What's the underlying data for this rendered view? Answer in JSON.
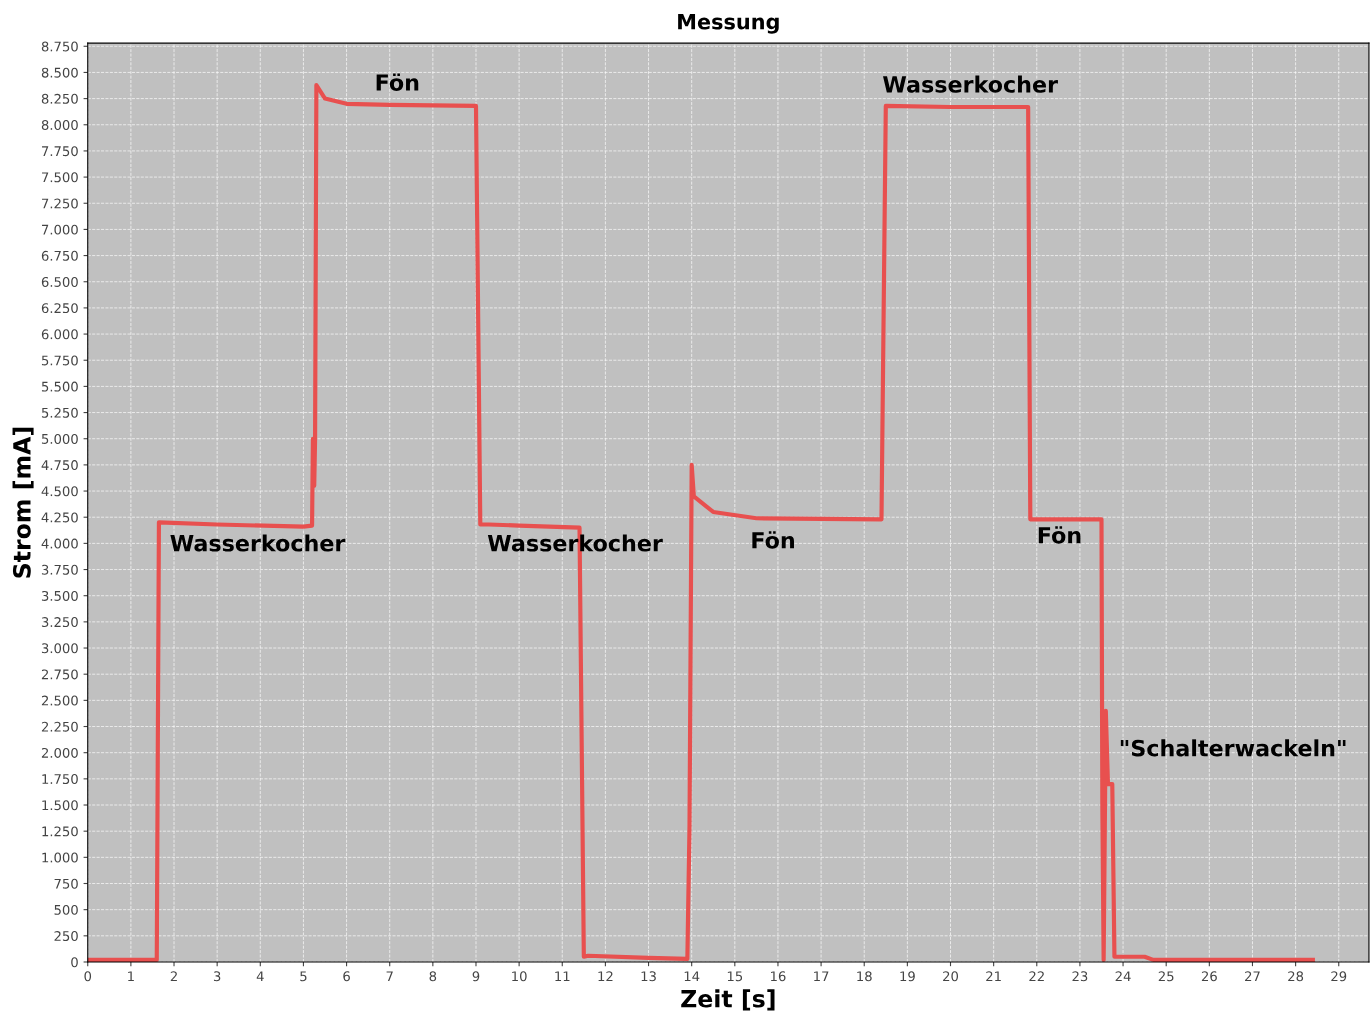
{
  "chart_data": {
    "type": "line",
    "title": "Messung",
    "xlabel": "Zeit [s]",
    "ylabel": "Strom [mA]",
    "xlim": [
      0,
      29.7
    ],
    "xticks": [
      0,
      1,
      2,
      3,
      4,
      5,
      6,
      7,
      8,
      9,
      10,
      11,
      12,
      13,
      14,
      15,
      16,
      17,
      18,
      19,
      20,
      21,
      22,
      23,
      24,
      25,
      26,
      27,
      28,
      29
    ],
    "ylim": [
      0,
      8780
    ],
    "yticks": [
      0,
      250,
      500,
      750,
      {
        "value": 1000,
        "label": "1.000"
      },
      {
        "value": 1250,
        "label": "1.250"
      },
      {
        "value": 1500,
        "label": "1.500"
      },
      {
        "value": 1750,
        "label": "1.750"
      },
      {
        "value": 2000,
        "label": "2.000"
      },
      {
        "value": 2250,
        "label": "2.250"
      },
      {
        "value": 2500,
        "label": "2.500"
      },
      {
        "value": 2750,
        "label": "2.750"
      },
      {
        "value": 3000,
        "label": "3.000"
      },
      {
        "value": 3250,
        "label": "3.250"
      },
      {
        "value": 3500,
        "label": "3.500"
      },
      {
        "value": 3750,
        "label": "3.750"
      },
      {
        "value": 4000,
        "label": "4.000"
      },
      {
        "value": 4250,
        "label": "4.250"
      },
      {
        "value": 4500,
        "label": "4.500"
      },
      {
        "value": 4750,
        "label": "4.750"
      },
      {
        "value": 5000,
        "label": "5.000"
      },
      {
        "value": 5250,
        "label": "5.250"
      },
      {
        "value": 5500,
        "label": "5.500"
      },
      {
        "value": 5750,
        "label": "5.750"
      },
      {
        "value": 6000,
        "label": "6.000"
      },
      {
        "value": 6250,
        "label": "6.250"
      },
      {
        "value": 6500,
        "label": "6.500"
      },
      {
        "value": 6750,
        "label": "6.750"
      },
      {
        "value": 7000,
        "label": "7.000"
      },
      {
        "value": 7250,
        "label": "7.250"
      },
      {
        "value": 7500,
        "label": "7.500"
      },
      {
        "value": 7750,
        "label": "7.750"
      },
      {
        "value": 8000,
        "label": "8.000"
      },
      {
        "value": 8250,
        "label": "8.250"
      },
      {
        "value": 8500,
        "label": "8.500"
      },
      {
        "value": 8750,
        "label": "8.750"
      }
    ],
    "grid": true,
    "line_style": "solid",
    "marker": "none",
    "series": [
      {
        "color": "#e8504f",
        "x": [
          0,
          1.6,
          1.65,
          3,
          5.0,
          5.2,
          5.22,
          5.25,
          5.27,
          5.3,
          5.5,
          6,
          7,
          9.0,
          9.1,
          9.3,
          10,
          11.4,
          11.5,
          11.6,
          13,
          13.9,
          13.95,
          14.0,
          14.05,
          14.5,
          15.5,
          18.4,
          18.5,
          20,
          21.8,
          21.85,
          23.5,
          23.52,
          23.55,
          23.6,
          23.65,
          23.75,
          23.8,
          24.5,
          24.7,
          28.4
        ],
        "values": [
          20,
          20,
          4200,
          4180,
          4160,
          4170,
          5000,
          4550,
          5000,
          8380,
          8250,
          8200,
          8190,
          8180,
          4180,
          4180,
          4170,
          4150,
          50,
          60,
          40,
          30,
          1300,
          4750,
          4450,
          4300,
          4240,
          4230,
          8180,
          8170,
          8170,
          4230,
          4230,
          1500,
          20,
          2400,
          1700,
          1700,
          50,
          50,
          20,
          20
        ]
      }
    ],
    "annotations": [
      {
        "text": "Wasserkocher",
        "x": 3,
        "y": 4180
      },
      {
        "text": "Fön",
        "x": 7,
        "y": 8190
      },
      {
        "text": "Wasserkocher",
        "x": 10,
        "y": 4170
      },
      {
        "text": "Fön",
        "x": 15.5,
        "y": 4240
      },
      {
        "text": "Wasserkocher",
        "x": 20,
        "y": 8170
      },
      {
        "text": "Fön",
        "x": 23,
        "y": 4230
      },
      {
        "text": "\"Schalterwackeln\"",
        "x": 23.75,
        "y": 1700
      }
    ]
  }
}
